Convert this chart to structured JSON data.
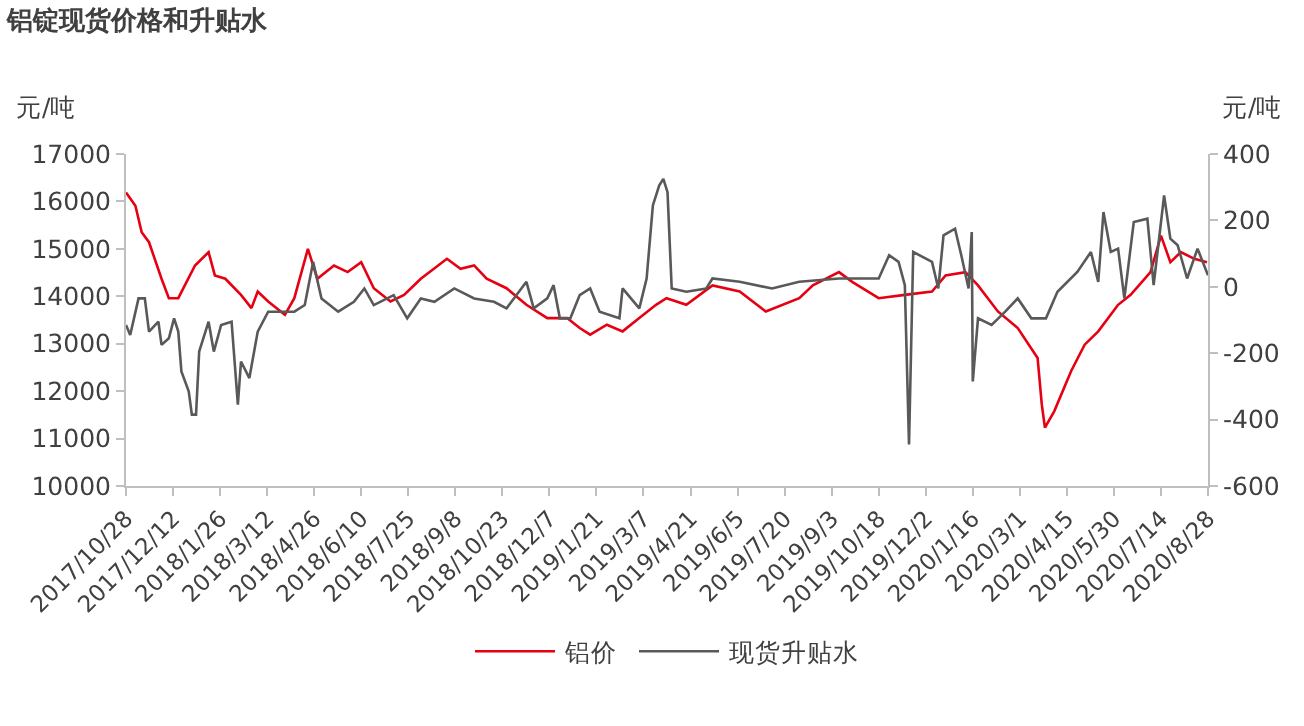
{
  "chart_data": {
    "type": "line",
    "title": "铝锭现货价格和升贴水",
    "ylabel": "元/吨",
    "y2label": "元/吨",
    "xlim": [
      "2017-10-28",
      "2020-08-28"
    ],
    "xticks": [
      {
        "value": "2017-10-28",
        "label": "2017/10/28"
      },
      {
        "value": "2017-12-12",
        "label": "2017/12/12"
      },
      {
        "value": "2018-01-26",
        "label": "2018/1/26"
      },
      {
        "value": "2018-03-12",
        "label": "2018/3/12"
      },
      {
        "value": "2018-04-26",
        "label": "2018/4/26"
      },
      {
        "value": "2018-06-10",
        "label": "2018/6/10"
      },
      {
        "value": "2018-07-25",
        "label": "2018/7/25"
      },
      {
        "value": "2018-09-08",
        "label": "2018/9/8"
      },
      {
        "value": "2018-10-23",
        "label": "2018/10/23"
      },
      {
        "value": "2018-12-07",
        "label": "2018/12/7"
      },
      {
        "value": "2019-01-21",
        "label": "2019/1/21"
      },
      {
        "value": "2019-03-07",
        "label": "2019/3/7"
      },
      {
        "value": "2019-04-21",
        "label": "2019/4/21"
      },
      {
        "value": "2019-06-05",
        "label": "2019/6/5"
      },
      {
        "value": "2019-07-20",
        "label": "2019/7/20"
      },
      {
        "value": "2019-09-03",
        "label": "2019/9/3"
      },
      {
        "value": "2019-10-18",
        "label": "2019/10/18"
      },
      {
        "value": "2019-12-02",
        "label": "2019/12/2"
      },
      {
        "value": "2020-01-16",
        "label": "2020/1/16"
      },
      {
        "value": "2020-03-01",
        "label": "2020/3/1"
      },
      {
        "value": "2020-04-15",
        "label": "2020/4/15"
      },
      {
        "value": "2020-05-30",
        "label": "2020/5/30"
      },
      {
        "value": "2020-07-14",
        "label": "2020/7/14"
      },
      {
        "value": "2020-08-28",
        "label": "2020/8/28"
      }
    ],
    "ylim": [
      10000,
      17000
    ],
    "yticks": [
      10000,
      11000,
      12000,
      13000,
      14000,
      15000,
      16000,
      17000
    ],
    "y2lim": [
      -600,
      400
    ],
    "y2ticks": [
      -600,
      -400,
      -200,
      0,
      200,
      400
    ],
    "legend": "bottom",
    "marker": "none",
    "line_style": "solid",
    "series": [
      {
        "name": "铝价",
        "color": "#e60012",
        "x": [
          "2017-10-28",
          "2017-11-06",
          "2017-11-12",
          "2017-11-19",
          "2017-12-01",
          "2017-12-08",
          "2017-12-17",
          "2018-01-02",
          "2018-01-15",
          "2018-01-21",
          "2018-01-31",
          "2018-02-15",
          "2018-02-25",
          "2018-03-03",
          "2018-03-13",
          "2018-03-29",
          "2018-04-07",
          "2018-04-20",
          "2018-04-29",
          "2018-05-15",
          "2018-05-28",
          "2018-06-10",
          "2018-06-22",
          "2018-07-08",
          "2018-07-21",
          "2018-08-06",
          "2018-08-31",
          "2018-09-13",
          "2018-09-26",
          "2018-10-08",
          "2018-10-27",
          "2018-11-15",
          "2018-12-05",
          "2018-12-24",
          "2019-01-05",
          "2019-01-15",
          "2019-01-31",
          "2019-02-15",
          "2019-03-03",
          "2019-03-19",
          "2019-03-29",
          "2019-04-17",
          "2019-05-12",
          "2019-06-07",
          "2019-07-02",
          "2019-08-03",
          "2019-08-16",
          "2019-09-10",
          "2019-09-23",
          "2019-10-18",
          "2019-11-12",
          "2019-12-08",
          "2019-12-21",
          "2020-01-09",
          "2020-01-21",
          "2020-02-09",
          "2020-02-28",
          "2020-03-18",
          "2020-03-22",
          "2020-03-25",
          "2020-04-03",
          "2020-04-19",
          "2020-05-02",
          "2020-05-15",
          "2020-06-03",
          "2020-06-15",
          "2020-07-04",
          "2020-07-14",
          "2020-07-23",
          "2020-08-02",
          "2020-08-15",
          "2020-08-27"
        ],
        "values": [
          16190,
          15910,
          15350,
          15140,
          14370,
          13960,
          13960,
          14650,
          14930,
          14440,
          14370,
          14030,
          13750,
          14100,
          13890,
          13610,
          13960,
          15000,
          14370,
          14650,
          14510,
          14720,
          14170,
          13890,
          14030,
          14370,
          14790,
          14580,
          14650,
          14370,
          14170,
          13820,
          13540,
          13540,
          13330,
          13190,
          13400,
          13260,
          13540,
          13820,
          13960,
          13820,
          14230,
          14100,
          13680,
          13960,
          14230,
          14510,
          14300,
          13960,
          14030,
          14100,
          14440,
          14510,
          14230,
          13680,
          13330,
          12700,
          11720,
          11230,
          11580,
          12420,
          12980,
          13260,
          13820,
          14030,
          14510,
          15280,
          14720,
          14930,
          14790,
          14720
        ]
      },
      {
        "name": "现货升贴水",
        "color": "#595959",
        "axis": "y2",
        "x": [
          "2017-10-28",
          "2017-11-01",
          "2017-11-09",
          "2017-11-15",
          "2017-11-19",
          "2017-11-28",
          "2017-12-01",
          "2017-12-08",
          "2017-12-13",
          "2017-12-17",
          "2017-12-20",
          "2017-12-27",
          "2017-12-30",
          "2018-01-03",
          "2018-01-06",
          "2018-01-15",
          "2018-01-20",
          "2018-01-27",
          "2018-02-06",
          "2018-02-12",
          "2018-02-15",
          "2018-02-23",
          "2018-03-03",
          "2018-03-13",
          "2018-03-26",
          "2018-04-07",
          "2018-04-17",
          "2018-04-25",
          "2018-05-03",
          "2018-05-19",
          "2018-06-03",
          "2018-06-13",
          "2018-06-22",
          "2018-07-11",
          "2018-07-24",
          "2018-08-06",
          "2018-08-19",
          "2018-09-07",
          "2018-09-26",
          "2018-10-15",
          "2018-10-27",
          "2018-11-15",
          "2018-11-22",
          "2018-12-05",
          "2018-12-11",
          "2018-12-17",
          "2018-12-27",
          "2019-01-05",
          "2019-01-15",
          "2019-01-24",
          "2019-02-12",
          "2019-02-15",
          "2019-03-03",
          "2019-03-10",
          "2019-03-16",
          "2019-03-22",
          "2019-03-26",
          "2019-03-30",
          "2019-04-03",
          "2019-04-17",
          "2019-05-06",
          "2019-05-12",
          "2019-06-07",
          "2019-07-08",
          "2019-08-03",
          "2019-09-10",
          "2019-10-05",
          "2019-10-18",
          "2019-10-28",
          "2019-11-06",
          "2019-11-12",
          "2019-11-16",
          "2019-11-20",
          "2019-12-08",
          "2019-12-14",
          "2019-12-19",
          "2019-12-30",
          "2020-01-05",
          "2020-01-12",
          "2020-01-15",
          "2020-01-16",
          "2020-01-21",
          "2020-02-03",
          "2020-02-16",
          "2020-02-28",
          "2020-03-12",
          "2020-03-26",
          "2020-04-06",
          "2020-04-25",
          "2020-05-08",
          "2020-05-15",
          "2020-05-20",
          "2020-05-27",
          "2020-06-03",
          "2020-06-09",
          "2020-06-18",
          "2020-07-01",
          "2020-07-07",
          "2020-07-17",
          "2020-07-23",
          "2020-07-30",
          "2020-08-08",
          "2020-08-18",
          "2020-08-28"
        ],
        "values": [
          -115,
          -145,
          -35,
          -35,
          -135,
          -105,
          -175,
          -155,
          -95,
          -135,
          -255,
          -315,
          -385,
          -385,
          -195,
          -105,
          -195,
          -115,
          -105,
          -355,
          -225,
          -275,
          -135,
          -75,
          -75,
          -75,
          -55,
          75,
          -35,
          -75,
          -45,
          -5,
          -55,
          -25,
          -95,
          -35,
          -45,
          -5,
          -35,
          -45,
          -65,
          15,
          -65,
          -35,
          5,
          -95,
          -95,
          -25,
          -5,
          -75,
          -95,
          -5,
          -65,
          25,
          245,
          305,
          325,
          285,
          -5,
          -15,
          -5,
          25,
          15,
          -5,
          15,
          25,
          25,
          25,
          95,
          75,
          5,
          -475,
          105,
          75,
          -5,
          155,
          175,
          95,
          -5,
          165,
          -285,
          -95,
          -115,
          -75,
          -35,
          -95,
          -95,
          -15,
          45,
          105,
          15,
          225,
          105,
          115,
          -35,
          195,
          205,
          5,
          275,
          145,
          125,
          25,
          115,
          35
        ]
      }
    ]
  }
}
